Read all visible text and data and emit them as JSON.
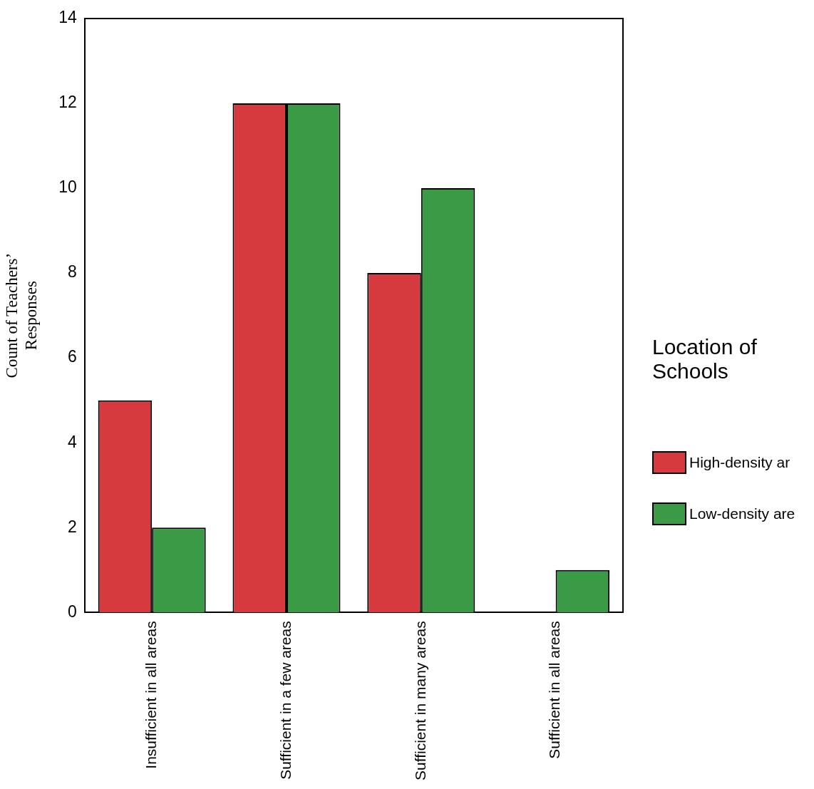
{
  "chart_data": {
    "type": "bar",
    "ylabel": "Count of Teachers’ Responses",
    "legend_title": "Location of Schools",
    "categories": [
      "Insufficient in all areas",
      "Sufficient in a few areas",
      "Sufficient in many areas",
      "Sufficient in all areas"
    ],
    "series": [
      {
        "name": "High-density ar",
        "color": "#d63a3f",
        "values": [
          5,
          12,
          8,
          0
        ]
      },
      {
        "name": "Low-density are",
        "color": "#3a9a45",
        "values": [
          2,
          12,
          10,
          1
        ]
      }
    ],
    "ylim": [
      0,
      14
    ],
    "yticks": [
      0,
      2,
      4,
      6,
      8,
      10,
      12,
      14
    ],
    "grid": false,
    "legend": "right"
  }
}
